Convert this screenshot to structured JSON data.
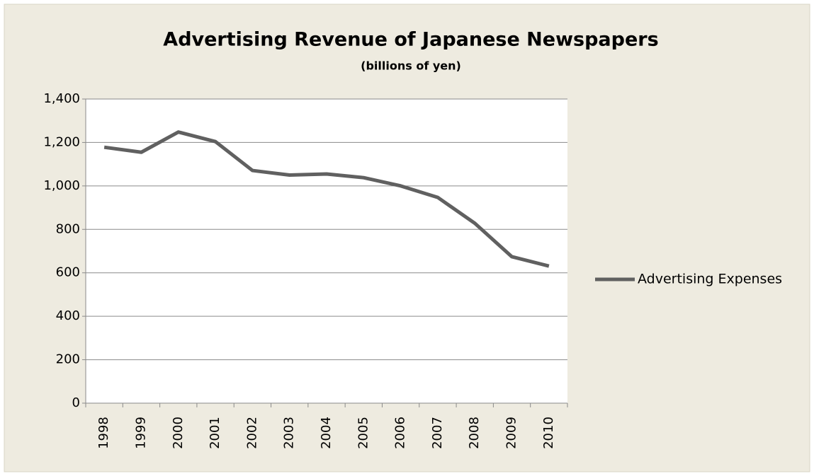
{
  "chart_data": {
    "type": "line",
    "title": "Advertising Revenue of Japanese Newspapers",
    "subtitle": "(billions of yen)",
    "categories": [
      "1998",
      "1999",
      "2000",
      "2001",
      "2002",
      "2003",
      "2004",
      "2005",
      "2006",
      "2007",
      "2008",
      "2009",
      "2010"
    ],
    "series": [
      {
        "name": "Advertising Expenses",
        "color": "#606060",
        "values": [
          1178,
          1155,
          1248,
          1204,
          1071,
          1050,
          1055,
          1038,
          1000,
          947,
          828,
          674,
          631
        ]
      }
    ],
    "ylim": [
      0,
      1400
    ],
    "yticks": [
      0,
      200,
      400,
      600,
      800,
      {
        "value": 1000,
        "label": "1,000"
      },
      {
        "value": 1200,
        "label": "1,200"
      },
      {
        "value": 1400,
        "label": "1,400"
      }
    ],
    "grid": true,
    "legend": "right"
  }
}
